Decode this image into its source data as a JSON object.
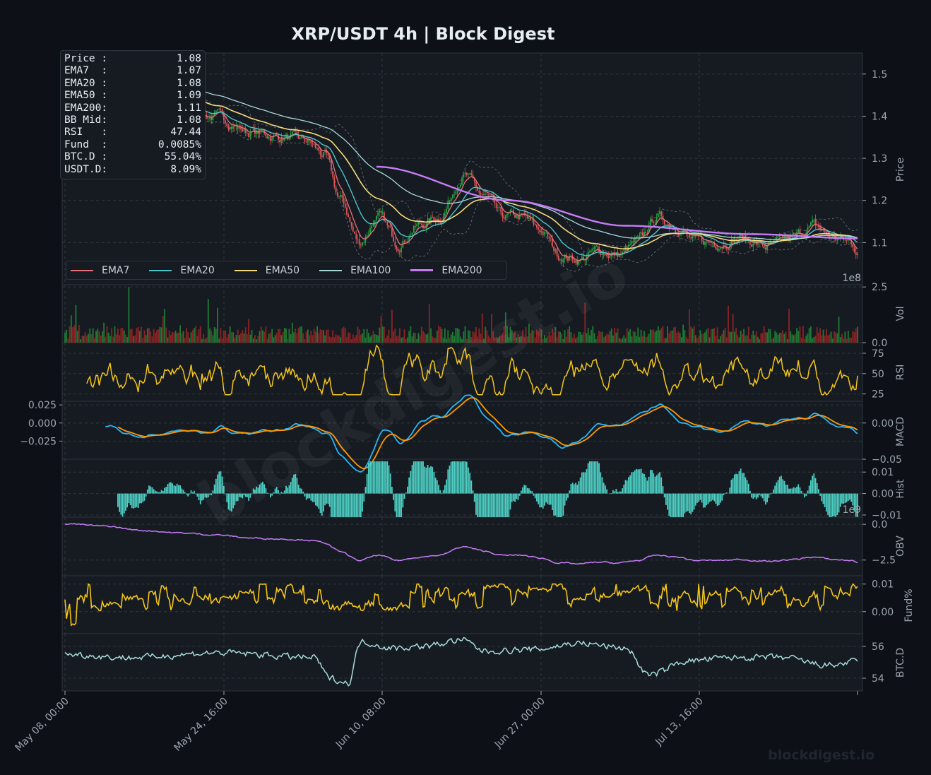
{
  "title": "XRP/USDT  4h  |  Block Digest",
  "watermark": {
    "diagonal": "blockdigest.io",
    "corner": "blockdigest.io"
  },
  "colors": {
    "background": "#0d1117",
    "panel": "#161b22",
    "grid": "#30363d",
    "up": "#26a641",
    "down": "#e05555",
    "ema7": "#e8717b",
    "ema20": "#4fc3c9",
    "ema50": "#f5dc7a",
    "ema100": "#a8d8d8",
    "ema200": "#c67cf7",
    "rsi": "#f5c518",
    "macd": "#29b6f6",
    "signal": "#ff9800",
    "hist": "#4dd0c4",
    "obv": "#c67cf7",
    "funding": "#f5c518",
    "btcd": "#a8dcdc"
  },
  "info_box": [
    {
      "label": "Price :",
      "value": "1.08"
    },
    {
      "label": "EMA7  :",
      "value": "1.07"
    },
    {
      "label": "EMA20 :",
      "value": "1.08"
    },
    {
      "label": "EMA50 :",
      "value": "1.09"
    },
    {
      "label": "EMA200:",
      "value": "1.11"
    },
    {
      "label": "BB Mid:",
      "value": "1.08"
    },
    {
      "label": "RSI   :",
      "value": "47.44"
    },
    {
      "label": "Fund  :",
      "value": "0.0085%"
    },
    {
      "label": "BTC.D :",
      "value": "55.04%"
    },
    {
      "label": "USDT.D:",
      "value": "8.09%"
    }
  ],
  "legend": [
    {
      "label": "EMA7",
      "color": "#e8717b"
    },
    {
      "label": "EMA20",
      "color": "#4fc3c9"
    },
    {
      "label": "EMA50",
      "color": "#f5dc7a"
    },
    {
      "label": "EMA100",
      "color": "#a8d8d8"
    },
    {
      "label": "EMA200",
      "color": "#c67cf7"
    }
  ],
  "chart_data": [
    {
      "type": "line",
      "id": "price",
      "ylabel": "Price",
      "ylim": [
        1.0,
        1.55
      ],
      "yticks": [
        "1.1",
        "1.2",
        "1.3",
        "1.4",
        "1.5"
      ],
      "description_series": [
        "OHLC candles",
        "EMA7",
        "EMA20",
        "EMA50",
        "EMA100",
        "EMA200",
        "BB upper",
        "BB lower"
      ],
      "x_ticks": [
        "May 08, 00:00",
        "May 24, 16:00",
        "Jun 10, 08:00",
        "Jun 27, 00:00",
        "Jul 13, 16:00"
      ],
      "close_anchors": [
        [
          "May 08, 00:00",
          1.53
        ],
        [
          "May 11",
          1.5
        ],
        [
          "May 14",
          1.45
        ],
        [
          "May 17",
          1.42
        ],
        [
          "May 20",
          1.4
        ],
        [
          "May 24",
          1.36
        ],
        [
          "May 27",
          1.35
        ],
        [
          "May 30",
          1.34
        ],
        [
          "Jun 01",
          1.31
        ],
        [
          "Jun 03",
          1.2
        ],
        [
          "Jun 05",
          1.1
        ],
        [
          "Jun 07",
          1.16
        ],
        [
          "Jun 09",
          1.1
        ],
        [
          "Jun 11",
          1.14
        ],
        [
          "Jun 13",
          1.16
        ],
        [
          "Jun 15",
          1.26
        ],
        [
          "Jun 17",
          1.21
        ],
        [
          "Jun 19",
          1.16
        ],
        [
          "Jun 21",
          1.16
        ],
        [
          "Jun 23",
          1.13
        ],
        [
          "Jun 25",
          1.07
        ],
        [
          "Jun 27",
          1.06
        ],
        [
          "Jun 29",
          1.08
        ],
        [
          "Jul 01",
          1.07
        ],
        [
          "Jul 03",
          1.1
        ],
        [
          "Jul 05",
          1.16
        ],
        [
          "Jul 07",
          1.14
        ],
        [
          "Jul 09",
          1.1
        ],
        [
          "Jul 11",
          1.1
        ],
        [
          "Jul 14",
          1.11
        ],
        [
          "Jul 17",
          1.09
        ],
        [
          "Jul 20",
          1.11
        ],
        [
          "Jul 22",
          1.14
        ],
        [
          "Jul 25",
          1.11
        ],
        [
          "Jul 28",
          1.1
        ],
        [
          "Jul 30",
          1.08
        ]
      ],
      "ema200_anchors": [
        [
          "Jun 10",
          1.28
        ],
        [
          "Jun 20",
          1.2
        ],
        [
          "Jul 01",
          1.14
        ],
        [
          "Jul 15",
          1.12
        ],
        [
          "Jul 30",
          1.11
        ]
      ]
    },
    {
      "type": "bar",
      "id": "volume",
      "ylabel": "Vol",
      "scale_label": "1e8",
      "ylim": [
        0,
        2.6
      ],
      "yticks": [
        "0.0",
        "2.5"
      ],
      "typical_value": 0.5,
      "max_value": 2.5
    },
    {
      "type": "line",
      "id": "rsi",
      "ylabel": "RSI",
      "ylim": [
        16,
        88
      ],
      "yticks": [
        "25",
        "50",
        "75"
      ],
      "range": [
        24,
        86
      ],
      "last": 47.44
    },
    {
      "type": "line",
      "id": "macd",
      "ylabel": "MACD",
      "ylim": [
        -0.05,
        0.03
      ],
      "yticks_right": [
        "0.00",
        "−0.05"
      ],
      "yticks_left": [
        "0.025",
        "0.000",
        "−0.025"
      ],
      "series": [
        {
          "name": "MACD"
        },
        {
          "name": "Signal"
        }
      ],
      "range": [
        -0.045,
        0.025
      ]
    },
    {
      "type": "bar",
      "id": "hist",
      "ylabel": "Hist",
      "ylim": [
        -0.011,
        0.016
      ],
      "yticks": [
        "0.01",
        "0.00",
        "−0.01"
      ]
    },
    {
      "type": "line",
      "id": "obv",
      "ylabel": "OBV",
      "scale_label": "1e9",
      "ylim": [
        -3.6,
        0.5
      ],
      "yticks": [
        "0.0",
        "−2.5"
      ],
      "start": 0.05,
      "end": -2.5
    },
    {
      "type": "line",
      "id": "funding",
      "ylabel": "Fund%",
      "ylim": [
        -0.008,
        0.013
      ],
      "yticks": [
        "0.01",
        "0.00"
      ],
      "range": [
        -0.008,
        0.01
      ]
    },
    {
      "type": "line",
      "id": "btcd",
      "ylabel": "BTC.D",
      "ylim": [
        53.2,
        56.8
      ],
      "yticks": [
        "56",
        "54"
      ],
      "range": [
        53.5,
        56.6
      ]
    }
  ]
}
